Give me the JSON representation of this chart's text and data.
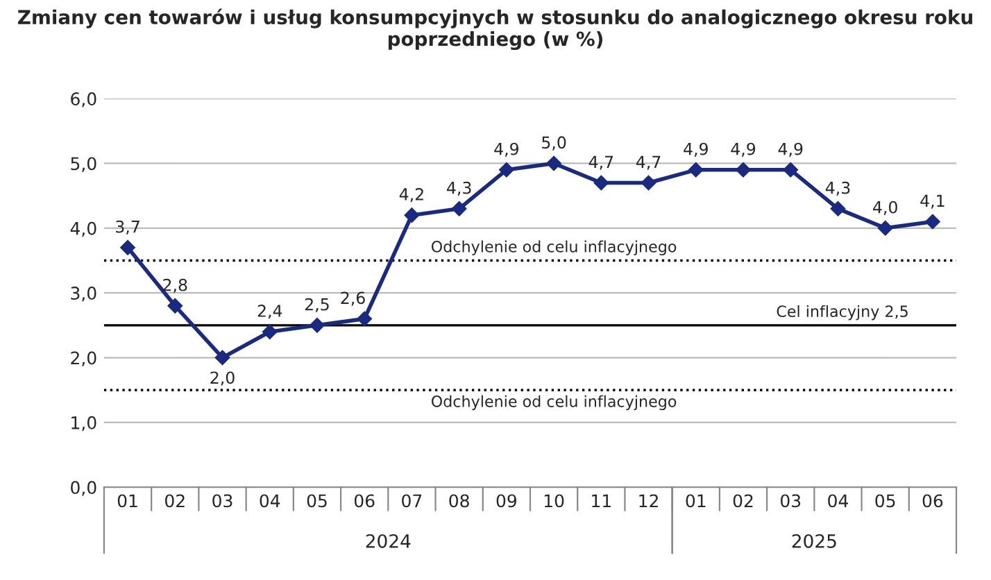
{
  "chart_data": {
    "type": "line",
    "title": "Zmiany cen towarów i usług konsumpcyjnych w stosunku do analogicznego okresu roku poprzedniego (w %)",
    "categories": [
      "01",
      "02",
      "03",
      "04",
      "05",
      "06",
      "07",
      "08",
      "09",
      "10",
      "11",
      "12",
      "01",
      "02",
      "03",
      "04",
      "05",
      "06"
    ],
    "series": [
      {
        "color": "#1a2a80",
        "values": [
          3.7,
          2.8,
          2.0,
          2.4,
          2.5,
          2.6,
          4.2,
          4.3,
          4.9,
          5.0,
          4.7,
          4.7,
          4.9,
          4.9,
          4.9,
          4.3,
          4.0,
          4.1
        ],
        "value_labels": [
          "3,7",
          "2,8",
          "2,0",
          "2,4",
          "2,5",
          "2,6",
          "4,2",
          "4,3",
          "4,9",
          "5,0",
          "4,7",
          "4,7",
          "4,9",
          "4,9",
          "4,9",
          "4,3",
          "4,0",
          "4,1"
        ]
      }
    ],
    "ylim": [
      0,
      6
    ],
    "yticks": [
      {
        "value": 0,
        "label": "0,0"
      },
      {
        "value": 1,
        "label": "1,0"
      },
      {
        "value": 2,
        "label": "2,0"
      },
      {
        "value": 3,
        "label": "3,0"
      },
      {
        "value": 4,
        "label": "4,0"
      },
      {
        "value": 5,
        "label": "5,0"
      },
      {
        "value": 6,
        "label": "6,0"
      }
    ],
    "grid": "y",
    "marker": "diamond",
    "line_style": "solid",
    "ref_lines": [
      {
        "axis": "y",
        "value": 3.5,
        "label": "Odchylenie od celu inflacyjnego",
        "line_style": "dotted",
        "color": "#000000"
      },
      {
        "axis": "y",
        "value": 2.5,
        "label": "Cel inflacyjny 2,5",
        "line_style": "solid",
        "color": "#000000"
      },
      {
        "axis": "y",
        "value": 1.5,
        "label": "Odchylenie od celu inflacyjnego",
        "line_style": "dotted",
        "color": "#000000"
      }
    ],
    "annotations": [
      "2024",
      "2025"
    ]
  }
}
